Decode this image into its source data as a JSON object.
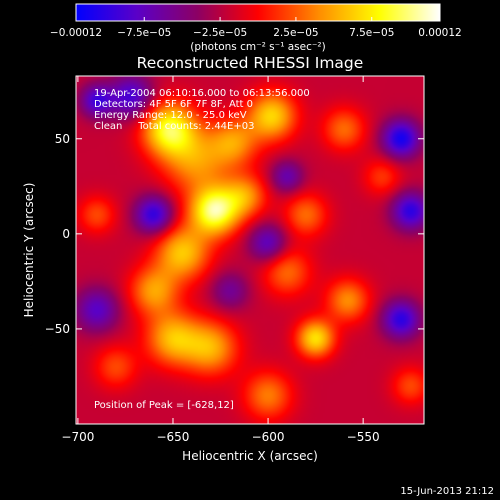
{
  "chart_data": {
    "type": "heatmap",
    "title": "Reconstructed RHESSI Image",
    "xlabel": "Heliocentric X (arcsec)",
    "ylabel": "Heliocentric Y (arcsec)",
    "xlim": [
      -701,
      -518
    ],
    "ylim": [
      -100,
      83
    ],
    "x_ticks": [
      {
        "value": -700,
        "label": "−700"
      },
      {
        "value": -650,
        "label": "−650"
      },
      {
        "value": -600,
        "label": "−600"
      },
      {
        "value": -550,
        "label": "−550"
      }
    ],
    "y_ticks": [
      {
        "value": 50,
        "label": "50"
      },
      {
        "value": 0,
        "label": "0"
      },
      {
        "value": -50,
        "label": "−50"
      }
    ],
    "colorbar": {
      "min": -0.00012,
      "max": 0.00012,
      "units": "(photons cm⁻² s⁻¹ asec⁻²)",
      "ticks": [
        {
          "value": -0.00012,
          "label": "−0.00012"
        },
        {
          "value": -7.5e-05,
          "label": "−7.5e−05"
        },
        {
          "value": -2.5e-05,
          "label": "−2.5e−05"
        },
        {
          "value": 2.5e-05,
          "label": "2.5e−05"
        },
        {
          "value": 7.5e-05,
          "label": "7.5e−05"
        },
        {
          "value": 0.00012,
          "label": "0.00012"
        }
      ],
      "colors": [
        "#0000ff",
        "#5a00c8",
        "#8c0064",
        "#ff0000",
        "#ff8c00",
        "#ffff00",
        "#ffffff"
      ]
    },
    "annotations": [
      "19-Apr-2004 06:10:16.000 to 06:13:56.000",
      "Detectors: 4F 5F 6F 7F 8F, Att 0",
      "Energy Range: 12.0 - 25.0 keV",
      "Clean     Total counts: 2.44E+03"
    ],
    "peak_label": "Position of Peak = [-628,12]",
    "peak": {
      "x": -628,
      "y": 12
    },
    "sources": [
      {
        "x": -628,
        "y": 12,
        "amp": 0.00012,
        "sigma": 9
      },
      {
        "x": -652,
        "y": 55,
        "amp": 0.000105,
        "sigma": 10
      },
      {
        "x": -638,
        "y": 38,
        "amp": 6e-05,
        "sigma": 12
      },
      {
        "x": -598,
        "y": 62,
        "amp": 8.5e-05,
        "sigma": 9
      },
      {
        "x": -618,
        "y": 48,
        "amp": 6e-05,
        "sigma": 9
      },
      {
        "x": -612,
        "y": 20,
        "amp": 6e-05,
        "sigma": 8
      },
      {
        "x": -645,
        "y": -10,
        "amp": 8e-05,
        "sigma": 10
      },
      {
        "x": -660,
        "y": -30,
        "amp": 6.5e-05,
        "sigma": 9
      },
      {
        "x": -650,
        "y": -55,
        "amp": 7.5e-05,
        "sigma": 10
      },
      {
        "x": -630,
        "y": -60,
        "amp": 7e-05,
        "sigma": 10
      },
      {
        "x": -590,
        "y": -20,
        "amp": 5e-05,
        "sigma": 9
      },
      {
        "x": -580,
        "y": 10,
        "amp": 5e-05,
        "sigma": 8
      },
      {
        "x": -575,
        "y": -55,
        "amp": 9e-05,
        "sigma": 7
      },
      {
        "x": -558,
        "y": -35,
        "amp": 6e-05,
        "sigma": 8
      },
      {
        "x": -600,
        "y": -85,
        "amp": 5.5e-05,
        "sigma": 9
      },
      {
        "x": -560,
        "y": 55,
        "amp": 5e-05,
        "sigma": 8
      },
      {
        "x": -690,
        "y": 10,
        "amp": 4e-05,
        "sigma": 7
      },
      {
        "x": -680,
        "y": -70,
        "amp": 4e-05,
        "sigma": 8
      },
      {
        "x": -525,
        "y": -80,
        "amp": 4e-05,
        "sigma": 7
      },
      {
        "x": -540,
        "y": 30,
        "amp": 3.5e-05,
        "sigma": 7
      },
      {
        "x": -672,
        "y": 72,
        "amp": -7e-05,
        "sigma": 8
      },
      {
        "x": -690,
        "y": 70,
        "amp": -7e-05,
        "sigma": 6
      },
      {
        "x": -660,
        "y": 10,
        "amp": -8e-05,
        "sigma": 7
      },
      {
        "x": -690,
        "y": -40,
        "amp": -6e-05,
        "sigma": 8
      },
      {
        "x": -530,
        "y": 50,
        "amp": -9e-05,
        "sigma": 7
      },
      {
        "x": -525,
        "y": 12,
        "amp": -8e-05,
        "sigma": 7
      },
      {
        "x": -530,
        "y": -45,
        "amp": -8e-05,
        "sigma": 7
      },
      {
        "x": -600,
        "y": -5,
        "amp": -6e-05,
        "sigma": 7
      },
      {
        "x": -590,
        "y": 30,
        "amp": -5e-05,
        "sigma": 6
      },
      {
        "x": -620,
        "y": -30,
        "amp": -4e-05,
        "sigma": 7
      }
    ]
  },
  "footer": {
    "timestamp": "15-Jun-2013 21:12"
  }
}
